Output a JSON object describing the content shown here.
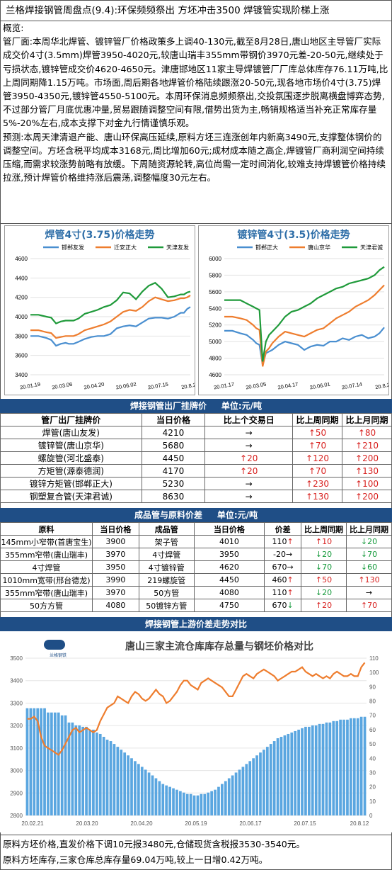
{
  "title": "兰格焊接钢管周盘点(9.4):环保频频祭出 方坯冲击3500 焊镀管实现阶梯上涨",
  "overview": {
    "heading": "概览:",
    "p1": "管厂面:本周华北焊管、镀锌管厂价格政策多上调40-130元,截至8月28日,唐山地区主导管厂实际成交价4寸(3.5mm)焊管3950-4020元,较唐山瑞丰355mm带钢价3970元差-20-50元,继续处于亏损状态,镀锌管成交价4620-4650元。津唐邯地区11家主导焊镀管厂厂库总体库存76.11万吨,比上周同期降1.15万吨。市场面,周后期各地焊管价格陆续跟涨20-50元,现各地市场价4寸(3.75)焊管3950-4350元,镀锌管4550-5100元。本周环保消息频频祭出,交投氛围逐步脱离横盘博弈态势,不过部分管厂月底优惠冲量,贸易跟随调整空间有限,借势出货为主,畅销规格适当补充正常库存量5%-20%左右,成本支撑下对金九行情谨慎乐观。",
    "p2": "预测:本周天津清退产能、唐山环保高压延续,原料方坯三连涨创年内新高3490元,支撑整体钢价的调整空间。方坯含税平均成本3168元,周比增加60元;成材成本随之高企,焊镀管厂商利润空间持续压缩,而需求较涨势前略有放缓。下周随资源轮转,高位尚需一定时间消化,较难支持焊镀管价格持续拉涨,预计焊管价格维持涨后震荡,调整幅度30元左右。"
  },
  "chart_data": [
    {
      "type": "line",
      "title": "焊管4寸(3.75)价格走势",
      "legend": [
        "邯郸友发",
        "迁安正大",
        "天津友发"
      ],
      "colors": [
        "#4a8fd0",
        "#ee7d2e",
        "#1f9a3a"
      ],
      "ylim": [
        3400,
        4600
      ],
      "yticks": [
        3400,
        3600,
        3800,
        4000,
        4200,
        4400,
        4600
      ],
      "xticks": [
        "20.01.19",
        "20.03.06",
        "20.04.20",
        "20.06.02",
        "20.07.15",
        "20.8.26"
      ],
      "series": [
        {
          "name": "邯郸友发",
          "x": [
            0,
            5,
            10,
            13,
            16,
            19,
            22,
            24,
            27,
            30,
            34,
            38,
            42,
            46,
            50,
            54,
            58,
            62,
            66,
            70,
            74,
            78,
            82,
            86,
            90,
            94,
            96,
            98,
            100
          ],
          "values": [
            3800,
            3800,
            3780,
            3760,
            3700,
            3720,
            3730,
            3720,
            3720,
            3740,
            3770,
            3790,
            3800,
            3800,
            3820,
            3880,
            3900,
            3910,
            3900,
            3940,
            3980,
            3990,
            3990,
            3980,
            4000,
            4040,
            4040,
            4080,
            4100
          ]
        },
        {
          "name": "迁安正大",
          "x": [
            0,
            5,
            10,
            13,
            16,
            19,
            22,
            24,
            27,
            30,
            34,
            38,
            42,
            46,
            50,
            54,
            58,
            62,
            66,
            70,
            74,
            78,
            82,
            86,
            90,
            94,
            96,
            98,
            100
          ],
          "values": [
            3860,
            3860,
            3840,
            3830,
            3780,
            3790,
            3800,
            3800,
            3800,
            3820,
            3860,
            3880,
            3900,
            3920,
            3950,
            4000,
            4050,
            4070,
            4060,
            4100,
            4160,
            4200,
            4180,
            4160,
            4170,
            4190,
            4190,
            4200,
            4220
          ]
        },
        {
          "name": "天津友发",
          "x": [
            0,
            5,
            10,
            13,
            16,
            19,
            22,
            24,
            27,
            30,
            34,
            38,
            42,
            46,
            50,
            54,
            58,
            62,
            66,
            70,
            74,
            78,
            82,
            86,
            90,
            94,
            96,
            98,
            100
          ],
          "values": [
            4020,
            4020,
            4000,
            3990,
            3930,
            3950,
            3960,
            3960,
            3960,
            3980,
            4030,
            4050,
            4070,
            4100,
            4120,
            4170,
            4250,
            4240,
            4180,
            4260,
            4320,
            4350,
            4290,
            4200,
            4210,
            4230,
            4230,
            4250,
            4260
          ]
        }
      ]
    },
    {
      "type": "line",
      "title": "镀锌管4寸(3.5)价格走势",
      "legend": [
        "邯郸正大",
        "唐山京华",
        "天津君诚"
      ],
      "colors": [
        "#4a8fd0",
        "#ee7d2e",
        "#1f9a3a"
      ],
      "ylim": [
        4600,
        6000
      ],
      "yticks": [
        4600,
        4800,
        5000,
        5200,
        5400,
        5600,
        5800,
        6000
      ],
      "xticks": [
        "20.01.17",
        "20.03.05",
        "20.04.17",
        "20.06.01",
        "20.07.14",
        "20.8.25"
      ],
      "series": [
        {
          "name": "邯郸正大",
          "x": [
            0,
            5,
            10,
            14,
            18,
            20,
            22,
            24,
            26,
            28,
            30,
            34,
            38,
            42,
            46,
            50,
            54,
            58,
            62,
            66,
            70,
            74,
            78,
            82,
            86,
            90,
            94,
            97,
            100
          ],
          "values": [
            5130,
            5130,
            5100,
            5080,
            5020,
            4980,
            4960,
            4720,
            4860,
            4880,
            4900,
            4960,
            5000,
            4980,
            4960,
            4900,
            4940,
            4960,
            4950,
            5000,
            5000,
            5040,
            5020,
            5060,
            5080,
            5040,
            5060,
            5100,
            5170
          ]
        },
        {
          "name": "唐山京华",
          "x": [
            0,
            5,
            10,
            14,
            18,
            20,
            22,
            24,
            26,
            28,
            30,
            34,
            38,
            42,
            46,
            50,
            54,
            58,
            62,
            66,
            70,
            74,
            78,
            82,
            86,
            90,
            94,
            97,
            100
          ],
          "values": [
            5300,
            5300,
            5280,
            5260,
            5200,
            5160,
            5140,
            4700,
            4880,
            4920,
            4980,
            5060,
            5120,
            5100,
            5080,
            5060,
            5100,
            5140,
            5160,
            5220,
            5280,
            5320,
            5360,
            5420,
            5460,
            5500,
            5560,
            5620,
            5680
          ]
        },
        {
          "name": "天津君诚",
          "x": [
            0,
            5,
            10,
            14,
            18,
            20,
            22,
            24,
            26,
            28,
            30,
            34,
            38,
            42,
            46,
            50,
            54,
            58,
            62,
            66,
            70,
            74,
            78,
            82,
            86,
            90,
            94,
            97,
            100
          ],
          "values": [
            5500,
            5500,
            5500,
            5460,
            5420,
            5400,
            5380,
            4760,
            5000,
            5080,
            5120,
            5200,
            5300,
            5360,
            5380,
            5420,
            5460,
            5520,
            5560,
            5600,
            5640,
            5660,
            5700,
            5720,
            5740,
            5760,
            5800,
            5860,
            5900
          ]
        }
      ]
    },
    {
      "type": "bar+line",
      "title": "唐山三家主流仓库库存总量与钢坯价格对比",
      "ylim_left": [
        2800,
        3500
      ],
      "yticks_left": [
        2800,
        2900,
        3000,
        3100,
        3200,
        3300,
        3400,
        3500
      ],
      "ylim_right": [
        0,
        110
      ],
      "yticks_right": [
        0,
        10,
        20,
        30,
        40,
        50,
        60,
        70,
        80,
        90,
        100,
        110
      ],
      "xticks": [
        "20.02.21",
        "20.03.20",
        "20.04.20",
        "20.05.19",
        "20.06.17",
        "20.07.15",
        "20.8.12"
      ],
      "price": [
        3230,
        3230,
        3240,
        3220,
        3150,
        3110,
        3100,
        3090,
        3080,
        3070,
        3090,
        3120,
        3150,
        3180,
        3190,
        3170,
        3180,
        3190,
        3180,
        3170,
        3180,
        3220,
        3250,
        3280,
        3290,
        3300,
        3330,
        3320,
        3310,
        3300,
        3330,
        3350,
        3340,
        3320,
        3310,
        3320,
        3340,
        3360,
        3340,
        3330,
        3300,
        3310,
        3330,
        3350,
        3380,
        3400,
        3400,
        3380,
        3370,
        3360,
        3390,
        3400,
        3410,
        3400,
        3390,
        3380,
        3370,
        3350,
        3330,
        3330,
        3360,
        3390,
        3420,
        3430,
        3420,
        3410,
        3430,
        3440,
        3450,
        3440,
        3430,
        3420,
        3400,
        3410,
        3420,
        3430,
        3440,
        3440,
        3450,
        3460,
        3440,
        3430,
        3420,
        3430,
        3420,
        3410,
        3420,
        3410,
        3430,
        3440,
        3430,
        3420,
        3420,
        3430,
        3420,
        3420,
        3460,
        3480
      ],
      "stock": [
        75,
        75,
        75,
        75,
        75,
        75,
        72,
        72,
        72,
        72,
        70,
        70,
        65,
        65,
        63,
        63,
        62,
        62,
        60,
        60,
        58,
        57,
        55,
        53,
        52,
        50,
        48,
        46,
        44,
        42,
        40,
        38,
        36,
        34,
        32,
        30,
        28,
        26,
        24,
        22,
        21,
        20,
        19,
        18,
        17,
        16,
        15,
        15,
        14,
        14,
        15,
        15,
        16,
        17,
        18,
        20,
        22,
        24,
        26,
        28,
        30,
        32,
        34,
        36,
        38,
        40,
        42,
        44,
        46,
        48,
        50,
        52,
        54,
        55,
        56,
        57,
        58,
        59,
        60,
        61,
        62,
        62,
        63,
        63,
        64,
        64,
        65,
        65,
        66,
        66,
        67,
        67,
        67,
        68,
        68,
        68,
        69,
        69
      ]
    }
  ],
  "table1": {
    "section_title": "焊接钢管出厂挂牌价",
    "unit": "单位:元/吨",
    "headers": [
      "管厂出厂挂牌价",
      "当日价格",
      "比上个交易日",
      "比上周同期",
      "比上月同期"
    ],
    "rows": [
      {
        "name": "焊管(唐山友发)",
        "price": "4210",
        "d1": "→",
        "w": "50",
        "m": "80",
        "d1c": "",
        "wc": "up",
        "mc": "up"
      },
      {
        "name": "镀锌管(唐山京华)",
        "price": "5680",
        "d1": "→",
        "w": "70",
        "m": "210",
        "d1c": "",
        "wc": "up",
        "mc": "up"
      },
      {
        "name": "螺旋管(河北盛泰)",
        "price": "4450",
        "d1": "20",
        "w": "120",
        "m": "200",
        "d1c": "up",
        "wc": "up",
        "mc": "up"
      },
      {
        "name": "方矩管(源泰德润)",
        "price": "4170",
        "d1": "20",
        "w": "70",
        "m": "130",
        "d1c": "up",
        "wc": "up",
        "mc": "up"
      },
      {
        "name": "镀锌方矩管(邯郸正大)",
        "price": "5230",
        "d1": "→",
        "w": "230",
        "m": "100",
        "d1c": "",
        "wc": "up",
        "mc": "up"
      },
      {
        "name": "钢塑复合管(天津君诚)",
        "price": "8630",
        "d1": "→",
        "w": "130",
        "m": "200",
        "d1c": "",
        "wc": "up",
        "mc": "up"
      }
    ]
  },
  "table2": {
    "section_title": "成品管与原料价差",
    "unit": "单位:元/吨",
    "headers": [
      "原料",
      "当日价格",
      "成品管",
      "当日价格",
      "价差",
      "比上周同期",
      "比上月同期"
    ],
    "rows": [
      {
        "raw": "145mm小窄带(首唐宝生)",
        "rp": "3900",
        "pipe": "架子管",
        "pp": "4010",
        "diff": "110",
        "dd": "up",
        "w": "10",
        "wd": "up",
        "m": "20",
        "md": "dn"
      },
      {
        "raw": "355mm窄带(唐山瑞丰)",
        "rp": "3970",
        "pipe": "4寸焊管",
        "pp": "3950",
        "diff": "-20",
        "dd": "rt",
        "w": "20",
        "wd": "dn",
        "m": "70",
        "md": "dn"
      },
      {
        "raw": "4寸焊管",
        "rp": "3950",
        "pipe": "4寸镀锌管",
        "pp": "4620",
        "diff": "670",
        "dd": "rt",
        "w": "70",
        "wd": "dn",
        "m": "60",
        "md": "dn"
      },
      {
        "raw": "1010mm宽带(邢台德龙)",
        "rp": "3990",
        "pipe": "219螺旋管",
        "pp": "4450",
        "diff": "460",
        "dd": "up",
        "w": "50",
        "wd": "up",
        "m": "130",
        "md": "up"
      },
      {
        "raw": "355mm窄带(唐山瑞丰)",
        "rp": "3970",
        "pipe": "50方管",
        "pp": "4080",
        "diff": "110",
        "dd": "up",
        "w": "20",
        "wd": "dn",
        "m": "→",
        "md": "rt"
      },
      {
        "raw": "50方方管",
        "rp": "4080",
        "pipe": "50镀锌方管",
        "pp": "4750",
        "diff": "670",
        "dd": "dn",
        "w": "20",
        "wd": "up",
        "m": "70",
        "md": "up"
      }
    ]
  },
  "section3": "焊接钢管上游价差走势对比",
  "logo_text": "兰格钢铁",
  "bottom": {
    "line1": "原料方坯价格,直发价格下调10元报3480元,仓储现货含税报3530-3540元。",
    "line2": "原料方坯库存,三家仓库总库存量69.04万吨,较上一日增0.42万吨。"
  }
}
